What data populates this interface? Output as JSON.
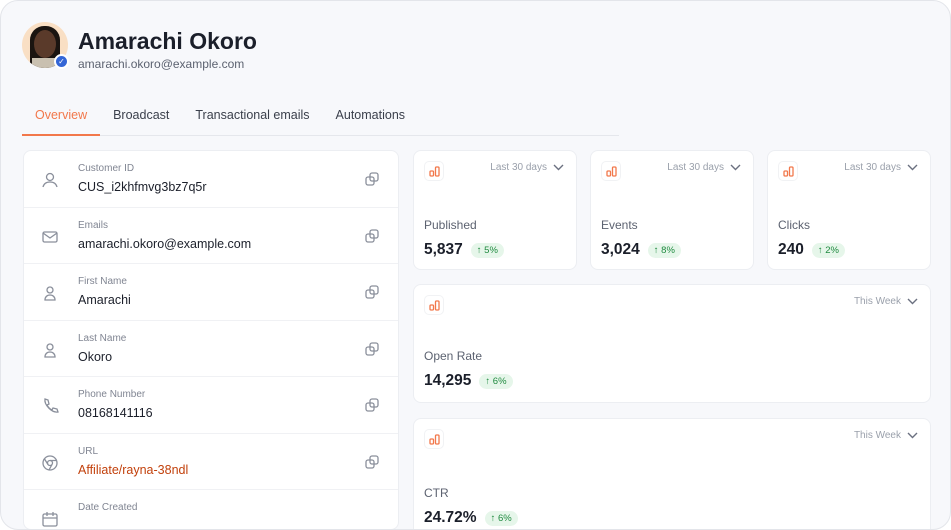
{
  "profile": {
    "name": "Amarachi Okoro",
    "email": "amarachi.okoro@example.com",
    "verified": true
  },
  "tabs": [
    {
      "label": "Overview",
      "active": true
    },
    {
      "label": "Broadcast"
    },
    {
      "label": "Transactional emails"
    },
    {
      "label": "Automations"
    }
  ],
  "fields": [
    {
      "label": "Customer ID",
      "value": "CUS_i2khfmvg3bz7q5r",
      "icon": "user-search-icon"
    },
    {
      "label": "Emails",
      "value": "amarachi.okoro@example.com",
      "icon": "mail-icon"
    },
    {
      "label": "First Name",
      "value": "Amarachi",
      "icon": "user-icon"
    },
    {
      "label": "Last Name",
      "value": "Okoro",
      "icon": "user-icon"
    },
    {
      "label": "Phone Number",
      "value": "08168141116",
      "icon": "phone-icon"
    },
    {
      "label": "URL",
      "value": "Affiliate/rayna-38ndl",
      "icon": "globe-icon"
    },
    {
      "label": "Date Created",
      "value": "",
      "icon": "calendar-icon"
    }
  ],
  "stats": [
    {
      "label": "Published",
      "value": "5,837",
      "change": "↑ 5%",
      "range": "Last 30 days"
    },
    {
      "label": "Events",
      "value": "3,024",
      "change": "↑ 8%",
      "range": "Last 30 days"
    },
    {
      "label": "Clicks",
      "value": "240",
      "change": "↑ 2%",
      "range": "Last 30 days"
    },
    {
      "label": "Open Rate",
      "value": "14,295",
      "change": "↑ 6%",
      "range": "This Week"
    },
    {
      "label": "CTR",
      "value": "24.72%",
      "change": "↑ 6%",
      "range": "This Week"
    }
  ],
  "colors": {
    "accent": "#f2784b",
    "link": "#c2410c",
    "positive": "#1f8a3f",
    "verified": "#3466d6"
  }
}
